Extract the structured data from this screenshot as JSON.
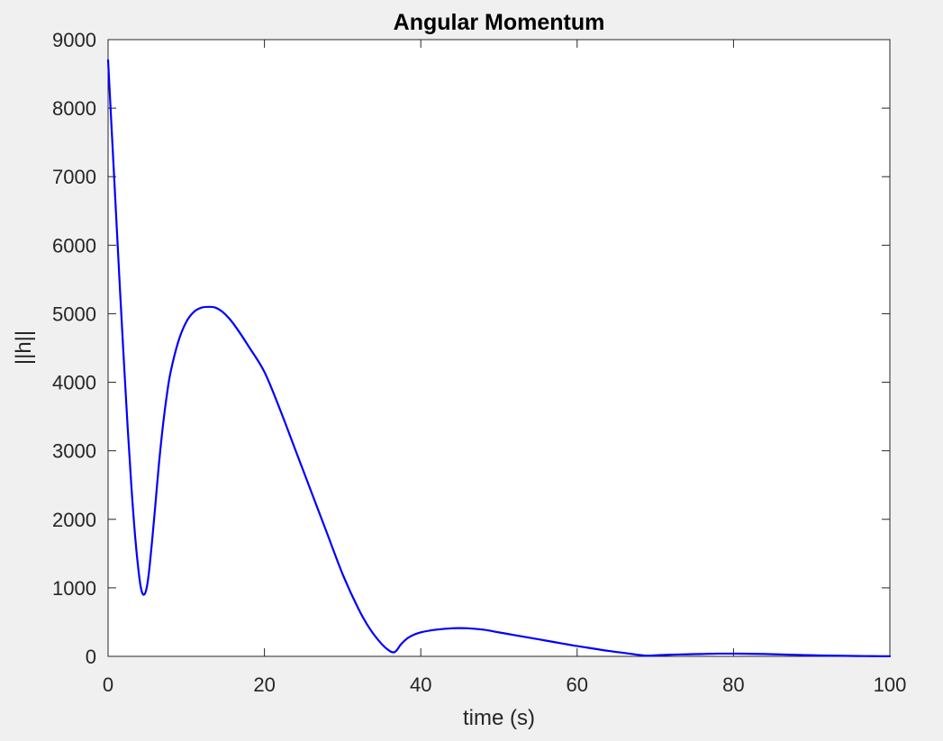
{
  "chart_data": {
    "type": "line",
    "title": "Angular Momentum",
    "xlabel": "time (s)",
    "ylabel": "||h||",
    "xlim": [
      0,
      100
    ],
    "ylim": [
      0,
      9000
    ],
    "xticks": [
      0,
      20,
      40,
      60,
      80,
      100
    ],
    "yticks": [
      0,
      1000,
      2000,
      3000,
      4000,
      5000,
      6000,
      7000,
      8000,
      9000
    ],
    "grid": false,
    "legend": "none",
    "series": [
      {
        "color": "#0000ff",
        "x": [
          0,
          0.5,
          1,
          1.5,
          2,
          2.5,
          3,
          3.5,
          4,
          4.3,
          4.6,
          4.9,
          5.2,
          5.6,
          6,
          6.5,
          7,
          7.5,
          8,
          9,
          10,
          11,
          12,
          13,
          13.7,
          14.5,
          15.5,
          16.5,
          18,
          20,
          22,
          24,
          26,
          28,
          30,
          32,
          33.5,
          35,
          36,
          36.6,
          37,
          37.5,
          38.5,
          40,
          42,
          44,
          46,
          48,
          50,
          52,
          54,
          56,
          58,
          60,
          62,
          64,
          66,
          68,
          69,
          70,
          72,
          74,
          76,
          78,
          80,
          82,
          84,
          86,
          88,
          90,
          92,
          94,
          96,
          98,
          100
        ],
        "y": [
          8700,
          7600,
          6500,
          5400,
          4350,
          3350,
          2450,
          1700,
          1150,
          950,
          900,
          980,
          1200,
          1650,
          2150,
          2800,
          3350,
          3800,
          4150,
          4600,
          4880,
          5030,
          5090,
          5100,
          5090,
          5040,
          4930,
          4780,
          4520,
          4150,
          3600,
          3000,
          2400,
          1800,
          1200,
          700,
          400,
          180,
          80,
          60,
          100,
          180,
          280,
          350,
          390,
          410,
          410,
          390,
          350,
          310,
          270,
          230,
          190,
          150,
          115,
          80,
          50,
          20,
          10,
          15,
          25,
          30,
          35,
          40,
          40,
          38,
          34,
          28,
          22,
          16,
          12,
          8,
          5,
          3,
          2
        ]
      }
    ]
  }
}
